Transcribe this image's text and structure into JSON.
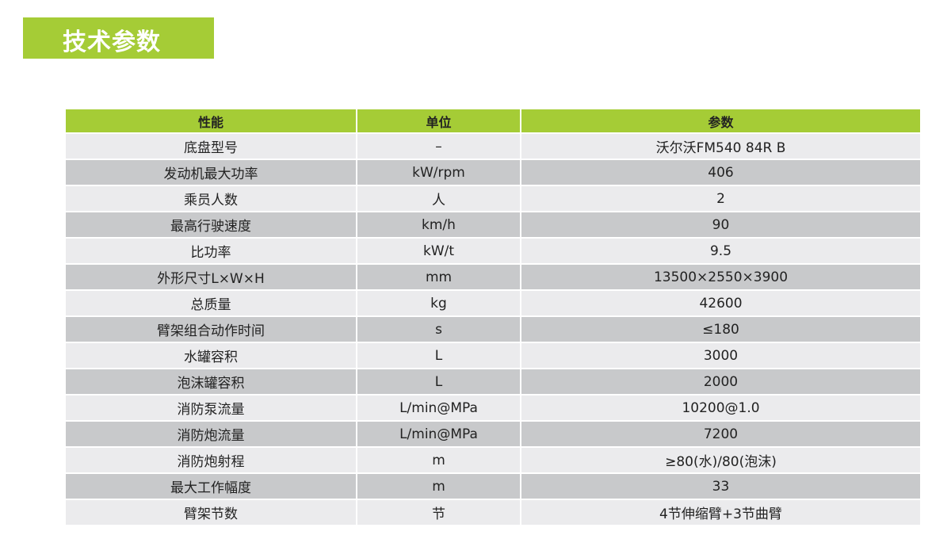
{
  "title": "技术参数",
  "colors": {
    "accent": "#a5cc36",
    "row_light": "#ebebed",
    "row_dark": "#c8c9cb"
  },
  "table": {
    "headers": [
      "性能",
      "单位",
      "参数"
    ],
    "rows": [
      [
        "底盘型号",
        "–",
        "沃尔沃FM540 84R B"
      ],
      [
        "发动机最大功率",
        "kW/rpm",
        "406"
      ],
      [
        "乘员人数",
        "人",
        "2"
      ],
      [
        "最高行驶速度",
        "km/h",
        "90"
      ],
      [
        "比功率",
        "kW/t",
        "9.5"
      ],
      [
        "外形尺寸L×W×H",
        "mm",
        "13500×2550×3900"
      ],
      [
        "总质量",
        "kg",
        "42600"
      ],
      [
        "臂架组合动作时间",
        "s",
        "≤180"
      ],
      [
        "水罐容积",
        "L",
        "3000"
      ],
      [
        "泡沫罐容积",
        "L",
        "2000"
      ],
      [
        "消防泵流量",
        "L/min@MPa",
        "10200@1.0"
      ],
      [
        "消防炮流量",
        "L/min@MPa",
        "7200"
      ],
      [
        "消防炮射程",
        "m",
        "≥80(水)/80(泡沫)"
      ],
      [
        "最大工作幅度",
        "m",
        "33"
      ],
      [
        "臂架节数",
        "节",
        "4节伸缩臂+3节曲臂"
      ]
    ]
  }
}
